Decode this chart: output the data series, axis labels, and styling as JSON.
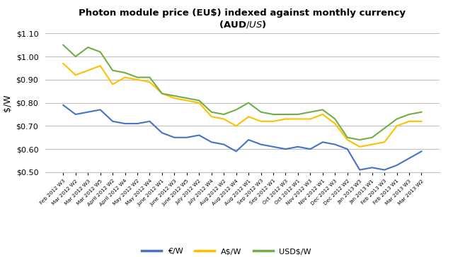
{
  "title_line1": "Photon module price (EU$) indexed against monthly currency",
  "title_line2": "(AUD$/US$)",
  "ylabel": "$/W",
  "ylim": [
    0.5,
    1.1
  ],
  "yticks": [
    0.5,
    0.6,
    0.7,
    0.8,
    0.9,
    1.0,
    1.1
  ],
  "background_color": "#ffffff",
  "grid_color": "#c0c0c0",
  "x_labels": [
    "Feb 2012 W3",
    "Mar 2012 W2",
    "Mar 2012 W3",
    "Mar 2012 W5",
    "April 2012 W2",
    "April 2012 W4",
    "May 2012 W2",
    "May 2012 W4",
    "June 2012 W1",
    "June 2012 W3",
    "June 2012 W5",
    "July 2012 W2",
    "July 2012 W4",
    "Aug 2012 W2",
    "Aug 2012 W4",
    "Aug 2012 W1",
    "Sep 2012 W3",
    "Sep 2012 W1",
    "Oct 2012 W3",
    "Oct 2012 W1",
    "Nov 2012 W3",
    "Nov 2012 W1",
    "Dec 2012 W3",
    "Dec 2012 W2",
    "Jan 2013 W3",
    "Jan 2013 W1",
    "Feb 2013 W3",
    "Feb 2013 W1",
    "Mar 2013 W3",
    "Mar 2013 W2"
  ],
  "eur_color": "#4472C4",
  "aud_color": "#FFC000",
  "usd_color": "#70AD47",
  "eur_label": "€/W",
  "aud_label": "A$/W",
  "usd_label": "USD$/W",
  "eur_values": [
    0.79,
    0.75,
    0.76,
    0.77,
    0.72,
    0.71,
    0.71,
    0.72,
    0.67,
    0.65,
    0.65,
    0.66,
    0.63,
    0.62,
    0.59,
    0.64,
    0.62,
    0.61,
    0.6,
    0.61,
    0.6,
    0.63,
    0.62,
    0.6,
    0.51,
    0.52,
    0.51,
    0.53,
    0.56,
    0.59
  ],
  "aud_values": [
    0.97,
    0.92,
    0.94,
    0.96,
    0.88,
    0.91,
    0.9,
    0.89,
    0.84,
    0.82,
    0.81,
    0.8,
    0.74,
    0.73,
    0.7,
    0.74,
    0.72,
    0.72,
    0.73,
    0.73,
    0.73,
    0.75,
    0.71,
    0.64,
    0.61,
    0.62,
    0.63,
    0.7,
    0.72,
    0.72
  ],
  "usd_values": [
    1.05,
    1.0,
    1.04,
    1.02,
    0.94,
    0.93,
    0.91,
    0.91,
    0.84,
    0.83,
    0.82,
    0.81,
    0.76,
    0.75,
    0.77,
    0.8,
    0.76,
    0.75,
    0.75,
    0.75,
    0.76,
    0.77,
    0.73,
    0.65,
    0.64,
    0.65,
    0.69,
    0.73,
    0.75,
    0.76
  ]
}
